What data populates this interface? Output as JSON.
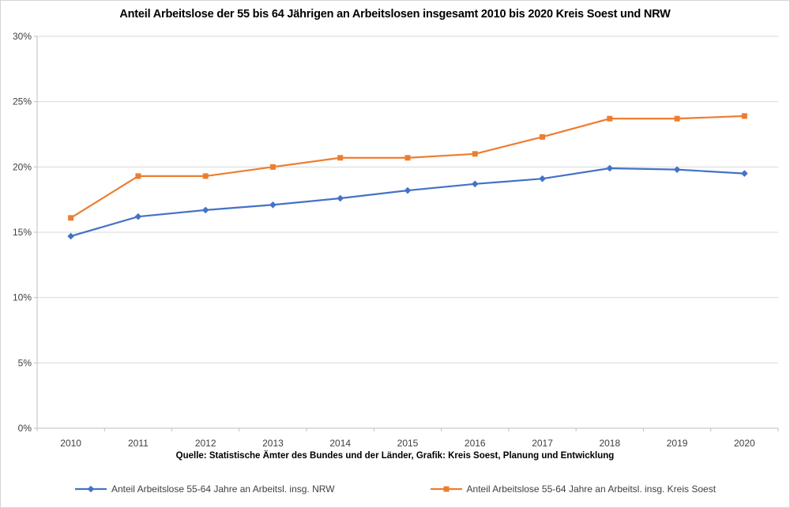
{
  "title": "Anteil Arbeitslose der 55 bis 64 Jährigen an Arbeitslosen insgesamt 2010 bis 2020 Kreis Soest und NRW",
  "source_note": "Quelle: Statistische Ämter des Bundes und der Länder, Grafik: Kreis Soest, Planung und Entwicklung",
  "colors": {
    "series_nrw": "#4472C4",
    "series_kreis_soest": "#ED7D31",
    "gridline": "#D9D9D9",
    "axis": "#BFBFBF",
    "tick_label": "#404040",
    "title_text": "#000000"
  },
  "chart_data": {
    "type": "line",
    "title": "Anteil Arbeitslose der 55 bis 64 Jährigen an Arbeitslosen insgesamt 2010 bis 2020 Kreis Soest und NRW",
    "categories": [
      "2010",
      "2011",
      "2012",
      "2013",
      "2014",
      "2015",
      "2016",
      "2017",
      "2018",
      "2019",
      "2020"
    ],
    "series": [
      {
        "name": "Anteil Arbeitslose 55-64 Jahre an Arbeitsl. insg. NRW",
        "color": "#4472C4",
        "marker": "diamond",
        "values": [
          14.7,
          16.2,
          16.7,
          17.1,
          17.6,
          18.2,
          18.7,
          19.1,
          19.9,
          19.8,
          19.5
        ]
      },
      {
        "name": "Anteil Arbeitslose 55-64 Jahre an Arbeitsl. insg. Kreis Soest",
        "color": "#ED7D31",
        "marker": "square",
        "values": [
          16.1,
          19.3,
          19.3,
          20.0,
          20.7,
          20.7,
          21.0,
          22.3,
          23.7,
          23.7,
          23.9
        ]
      }
    ],
    "xlabel": "",
    "ylabel": "",
    "ylim": [
      0,
      30
    ],
    "ytick_step": 5,
    "ytick_labels": [
      "0%",
      "5%",
      "10%",
      "15%",
      "20%",
      "25%",
      "30%"
    ],
    "grid": true,
    "legend_position": "bottom"
  },
  "legend": {
    "items": [
      {
        "label": "Anteil Arbeitslose 55-64 Jahre an Arbeitsl. insg. NRW"
      },
      {
        "label": "Anteil Arbeitslose 55-64 Jahre an Arbeitsl. insg. Kreis Soest"
      }
    ]
  }
}
